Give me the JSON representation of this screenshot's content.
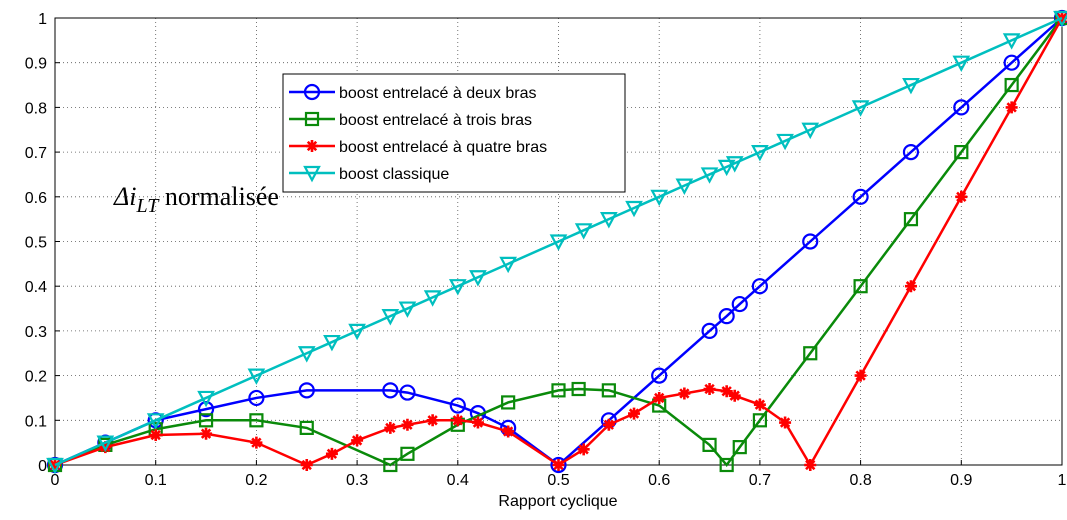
{
  "chart_data": {
    "type": "line",
    "xlabel": "Rapport cyclique",
    "annotation": {
      "symbol": "Δi",
      "subscript": "LT",
      "text": "normalisée"
    },
    "xlim": [
      0,
      1
    ],
    "ylim": [
      0,
      1
    ],
    "xticks": [
      0,
      0.1,
      0.2,
      0.3,
      0.4,
      0.5,
      0.6,
      0.7,
      0.8,
      0.9,
      1
    ],
    "yticks": [
      0,
      0.1,
      0.2,
      0.3,
      0.4,
      0.5,
      0.6,
      0.7,
      0.8,
      0.9,
      1
    ],
    "grid": true,
    "legend": "upper center",
    "series": [
      {
        "name": "boost entrelacé à deux bras",
        "color": "#0000ff",
        "marker": "circle",
        "x": [
          0,
          0.05,
          0.1,
          0.15,
          0.2,
          0.25,
          0.333,
          0.35,
          0.4,
          0.42,
          0.45,
          0.5,
          0.55,
          0.6,
          0.65,
          0.667,
          0.68,
          0.7,
          0.75,
          0.8,
          0.85,
          0.9,
          0.95,
          1
        ],
        "values": [
          0,
          0.05,
          0.1,
          0.125,
          0.15,
          0.167,
          0.167,
          0.162,
          0.133,
          0.116,
          0.083,
          0,
          0.1,
          0.2,
          0.3,
          0.333,
          0.36,
          0.4,
          0.5,
          0.6,
          0.7,
          0.8,
          0.9,
          1
        ]
      },
      {
        "name": "boost entrelacé à trois bras",
        "color": "#0a8a0a",
        "marker": "square",
        "x": [
          0,
          0.05,
          0.1,
          0.15,
          0.2,
          0.25,
          0.333,
          0.35,
          0.4,
          0.45,
          0.5,
          0.52,
          0.55,
          0.6,
          0.65,
          0.667,
          0.68,
          0.7,
          0.75,
          0.8,
          0.85,
          0.9,
          0.95,
          1
        ],
        "values": [
          0,
          0.045,
          0.08,
          0.1,
          0.1,
          0.083,
          0,
          0.025,
          0.09,
          0.14,
          0.167,
          0.17,
          0.167,
          0.133,
          0.045,
          0,
          0.04,
          0.1,
          0.25,
          0.4,
          0.55,
          0.7,
          0.85,
          1
        ]
      },
      {
        "name": "boost entrelacé à quatre bras",
        "color": "#ff0000",
        "marker": "star",
        "x": [
          0,
          0.05,
          0.1,
          0.15,
          0.2,
          0.25,
          0.275,
          0.3,
          0.333,
          0.35,
          0.375,
          0.4,
          0.42,
          0.45,
          0.5,
          0.525,
          0.55,
          0.575,
          0.6,
          0.625,
          0.65,
          0.667,
          0.675,
          0.7,
          0.725,
          0.75,
          0.8,
          0.85,
          0.9,
          0.95,
          1
        ],
        "values": [
          0,
          0.04,
          0.067,
          0.07,
          0.05,
          0,
          0.025,
          0.055,
          0.083,
          0.09,
          0.1,
          0.1,
          0.095,
          0.075,
          0,
          0.035,
          0.09,
          0.115,
          0.15,
          0.16,
          0.17,
          0.165,
          0.155,
          0.135,
          0.095,
          0,
          0.2,
          0.4,
          0.6,
          0.8,
          1
        ]
      },
      {
        "name": "boost classique",
        "color": "#00bfbf",
        "marker": "triangle-down",
        "x": [
          0,
          0.05,
          0.1,
          0.15,
          0.2,
          0.25,
          0.275,
          0.3,
          0.333,
          0.35,
          0.375,
          0.4,
          0.42,
          0.45,
          0.5,
          0.525,
          0.55,
          0.575,
          0.6,
          0.625,
          0.65,
          0.667,
          0.675,
          0.7,
          0.725,
          0.75,
          0.8,
          0.85,
          0.9,
          0.95,
          1
        ],
        "values": [
          0,
          0.05,
          0.1,
          0.15,
          0.2,
          0.25,
          0.275,
          0.3,
          0.333,
          0.35,
          0.375,
          0.4,
          0.42,
          0.45,
          0.5,
          0.525,
          0.55,
          0.575,
          0.6,
          0.625,
          0.65,
          0.667,
          0.675,
          0.7,
          0.725,
          0.75,
          0.8,
          0.85,
          0.9,
          0.95,
          1
        ]
      }
    ]
  }
}
